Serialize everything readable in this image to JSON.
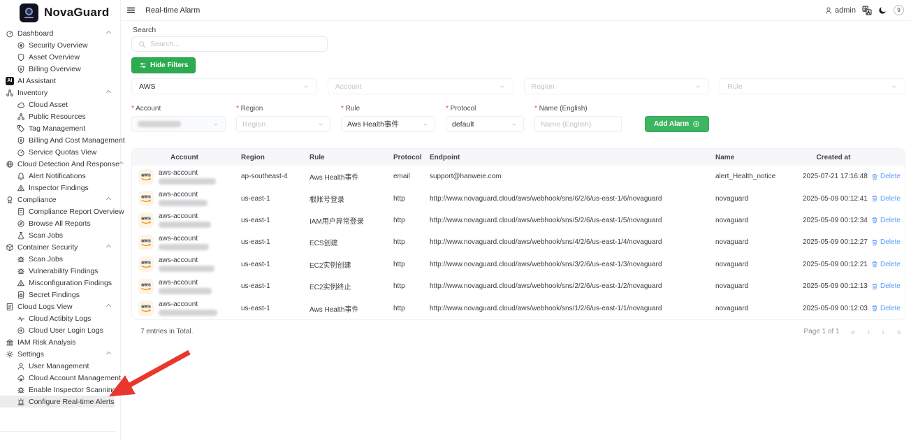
{
  "brand": {
    "name": "NovaGuard"
  },
  "topbar": {
    "page_title": "Real-time Alarm",
    "username": "admin",
    "badge": "9"
  },
  "icons": {
    "search": "magnifier",
    "hide_filters": "sliders",
    "add_alarm": "plus-circle",
    "delete": "trash",
    "dark_mode": "moon-crescent",
    "language": "translate",
    "user": "person-outline",
    "menu": "hamburger",
    "select": "chevron-down",
    "pager": {
      "first": "«",
      "prev": "‹",
      "next": "›",
      "last": "»"
    }
  },
  "sidebar": {
    "items": [
      {
        "label": "Dashboard",
        "level": 0,
        "caret": true,
        "icon": "gauge"
      },
      {
        "label": "Security Overview",
        "level": 1,
        "icon": "target"
      },
      {
        "label": "Asset Overview",
        "level": 1,
        "icon": "shield"
      },
      {
        "label": "Billing Overview",
        "level": 1,
        "icon": "shield-dollar"
      },
      {
        "label": "AI Assistant",
        "level": 0,
        "icon": "ai"
      },
      {
        "label": "Inventory",
        "level": 0,
        "caret": true,
        "icon": "nodes"
      },
      {
        "label": "Cloud Asset",
        "level": 1,
        "icon": "cloud"
      },
      {
        "label": "Public Resources",
        "level": 1,
        "icon": "nodes"
      },
      {
        "label": "Tag Management",
        "level": 1,
        "icon": "tag"
      },
      {
        "label": "Billing And Cost Management",
        "level": 1,
        "icon": "shield-dollar"
      },
      {
        "label": "Service Quotas View",
        "level": 1,
        "icon": "gauge"
      },
      {
        "label": "Cloud Detection And Response",
        "level": 0,
        "caret": true,
        "icon": "globe"
      },
      {
        "label": "Alert Notifications",
        "level": 1,
        "icon": "bell"
      },
      {
        "label": "Inspector Findings",
        "level": 1,
        "icon": "warning"
      },
      {
        "label": "Compliance",
        "level": 0,
        "caret": true,
        "icon": "ribbon"
      },
      {
        "label": "Compliance Report Overview",
        "level": 1,
        "icon": "doc"
      },
      {
        "label": "Browse All Reports",
        "level": 1,
        "icon": "compass"
      },
      {
        "label": "Scan Jobs",
        "level": 1,
        "icon": "flask"
      },
      {
        "label": "Container Security",
        "level": 0,
        "caret": true,
        "icon": "box"
      },
      {
        "label": "Scan Jobs",
        "level": 1,
        "icon": "bug"
      },
      {
        "label": "Vulnerability Findings",
        "level": 1,
        "icon": "bug"
      },
      {
        "label": "Misconfiguration Findings",
        "level": 1,
        "icon": "warning"
      },
      {
        "label": "Secret Findings",
        "level": 1,
        "icon": "doc-lock"
      },
      {
        "label": "Cloud Logs View",
        "level": 0,
        "caret": true,
        "icon": "logs"
      },
      {
        "label": "Cloud Actibity Logs",
        "level": 1,
        "icon": "activity"
      },
      {
        "label": "Cloud User Login Logs",
        "level": 1,
        "icon": "login"
      },
      {
        "label": "IAM Risk Analysis",
        "level": 0,
        "icon": "bank"
      },
      {
        "label": "Settings",
        "level": 0,
        "caret": true,
        "icon": "gear"
      },
      {
        "label": "User Management",
        "level": 1,
        "icon": "person"
      },
      {
        "label": "Cloud Account Management",
        "level": 1,
        "icon": "cloud-user"
      },
      {
        "label": "Enable Inspector Scanning",
        "level": 1,
        "icon": "bug"
      },
      {
        "label": "Configure Real-time Alerts",
        "level": 1,
        "icon": "siren",
        "selected": true
      }
    ]
  },
  "filters": {
    "search_label": "Search",
    "search_placeholder": "Search...",
    "hide_filters_label": "Hide Filters",
    "provider_value": "AWS",
    "account_placeholder": "Account",
    "region_placeholder": "Region",
    "rule_placeholder": "Rule"
  },
  "form": {
    "account_label": "Account",
    "region_label": "Region",
    "rule_label": "Rule",
    "protocol_label": "Protocol",
    "name_label": "Name (English)",
    "region_placeholder": "Region",
    "rule_value": "Aws Health事件",
    "protocol_value": "default",
    "name_placeholder": "Name (English)",
    "add_alarm_label": "Add Alarm"
  },
  "table": {
    "headers": {
      "account": "Account",
      "region": "Region",
      "rule": "Rule",
      "protocol": "Protocol",
      "endpoint": "Endpoint",
      "name": "Name",
      "created": "Created at"
    },
    "delete_label": "Delete",
    "rows": [
      {
        "account": "aws-account",
        "region": "ap-southeast-4",
        "rule": "Aws Health事件",
        "protocol": "email",
        "endpoint": "support@hanweie.com",
        "name": "alert_Health_notice",
        "created": "2025-07-21 17:16:48"
      },
      {
        "account": "aws-account",
        "region": "us-east-1",
        "rule": "根账号登录",
        "protocol": "http",
        "endpoint": "http://www.novaguard.cloud/aws/webhook/sns/6/2/6/us-east-1/6/novaguard",
        "name": "novaguard",
        "created": "2025-05-09 00:12:41"
      },
      {
        "account": "aws-account",
        "region": "us-east-1",
        "rule": "IAM用户异常登录",
        "protocol": "http",
        "endpoint": "http://www.novaguard.cloud/aws/webhook/sns/5/2/6/us-east-1/5/novaguard",
        "name": "novaguard",
        "created": "2025-05-09 00:12:34"
      },
      {
        "account": "aws-account",
        "region": "us-east-1",
        "rule": "ECS创建",
        "protocol": "http",
        "endpoint": "http://www.novaguard.cloud/aws/webhook/sns/4/2/6/us-east-1/4/novaguard",
        "name": "novaguard",
        "created": "2025-05-09 00:12:27"
      },
      {
        "account": "aws-account",
        "region": "us-east-1",
        "rule": "EC2实例创建",
        "protocol": "http",
        "endpoint": "http://www.novaguard.cloud/aws/webhook/sns/3/2/6/us-east-1/3/novaguard",
        "name": "novaguard",
        "created": "2025-05-09 00:12:21"
      },
      {
        "account": "aws-account",
        "region": "us-east-1",
        "rule": "EC2实例终止",
        "protocol": "http",
        "endpoint": "http://www.novaguard.cloud/aws/webhook/sns/2/2/6/us-east-1/2/novaguard",
        "name": "novaguard",
        "created": "2025-05-09 00:12:13"
      },
      {
        "account": "aws-account",
        "region": "us-east-1",
        "rule": "Aws Health事件",
        "protocol": "http",
        "endpoint": "http://www.novaguard.cloud/aws/webhook/sns/1/2/6/us-east-1/1/novaguard",
        "name": "novaguard",
        "created": "2025-05-09 00:12:03"
      }
    ]
  },
  "footer": {
    "total_text": "7 entries in Total.",
    "page_text": "Page 1 of 1"
  },
  "colors": {
    "accent_green": "#2eb85c",
    "link_blue": "#5b9cf8",
    "annotation_red": "#e8382e",
    "aws_orange": "#f79400"
  }
}
